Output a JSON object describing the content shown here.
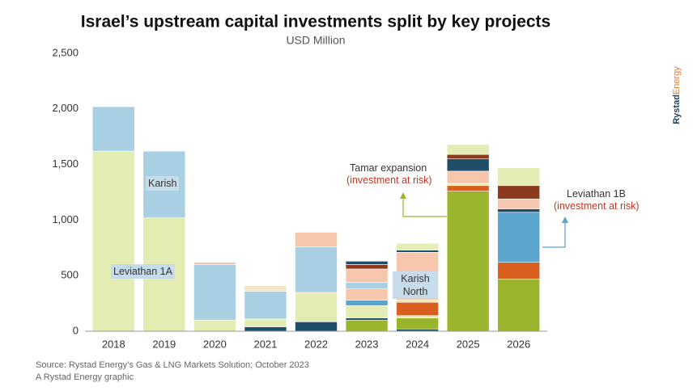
{
  "chart_data": {
    "type": "stacked-bar",
    "title": "Israel’s upstream capital investments split by key projects",
    "subtitle": "USD Million",
    "categories": [
      "2018",
      "2019",
      "2020",
      "2021",
      "2022",
      "2023",
      "2024",
      "2025",
      "2026"
    ],
    "stacks": [
      [
        {
          "color": "#e3ecb2",
          "value": 1620
        },
        {
          "color": "#a9cfe3",
          "value": 400
        }
      ],
      [
        {
          "color": "#e3ecb2",
          "value": 1020
        },
        {
          "color": "#a9cfe3",
          "value": 600
        }
      ],
      [
        {
          "color": "#e3ecb2",
          "value": 100
        },
        {
          "color": "#a9cfe3",
          "value": 500
        },
        {
          "color": "#f5c6ac",
          "value": 20
        }
      ],
      [
        {
          "color": "#1f4e6b",
          "value": 40
        },
        {
          "color": "#e3ecb2",
          "value": 70
        },
        {
          "color": "#a9cfe3",
          "value": 250
        },
        {
          "color": "#f1e6c8",
          "value": 50
        }
      ],
      [
        {
          "color": "#1f4e6b",
          "value": 85
        },
        {
          "color": "#e3ecb2",
          "value": 255
        },
        {
          "color": "#f5c6ac",
          "value": 10
        },
        {
          "color": "#a9cfe3",
          "value": 410
        },
        {
          "color": "#f5c6ac",
          "value": 130
        }
      ],
      [
        {
          "color": "#9ab52b",
          "value": 100
        },
        {
          "color": "#1f4e6b",
          "value": 20
        },
        {
          "color": "#e3ecb2",
          "value": 110
        },
        {
          "color": "#5aa5cc",
          "value": 50
        },
        {
          "color": "#f5c6ac",
          "value": 100
        },
        {
          "color": "#a9cfe3",
          "value": 60
        },
        {
          "color": "#f5c6ac",
          "value": 120
        },
        {
          "color": "#8b3a1e",
          "value": 40
        },
        {
          "color": "#1f4e6b",
          "value": 30
        }
      ],
      [
        {
          "color": "#1f4e6b",
          "value": 20
        },
        {
          "color": "#9ab52b",
          "value": 100
        },
        {
          "color": "#e3ecb2",
          "value": 20
        },
        {
          "color": "#d95f1e",
          "value": 120
        },
        {
          "color": "#e3ecb2",
          "value": 20
        },
        {
          "color": "#f5c6ac",
          "value": 430
        },
        {
          "color": "#1f4e6b",
          "value": 20
        },
        {
          "color": "#e3ecb2",
          "value": 60
        }
      ],
      [
        {
          "color": "#9ab52b",
          "value": 1260
        },
        {
          "color": "#d95f1e",
          "value": 50
        },
        {
          "color": "#e3ecb2",
          "value": 20
        },
        {
          "color": "#f5c6ac",
          "value": 110
        },
        {
          "color": "#1f4e6b",
          "value": 110
        },
        {
          "color": "#8b3a1e",
          "value": 40
        },
        {
          "color": "#e3ecb2",
          "value": 90
        }
      ],
      [
        {
          "color": "#9ab52b",
          "value": 470
        },
        {
          "color": "#d95f1e",
          "value": 150
        },
        {
          "color": "#5aa5cc",
          "value": 450
        },
        {
          "color": "#1f4e6b",
          "value": 30
        },
        {
          "color": "#f5c6ac",
          "value": 90
        },
        {
          "color": "#8b3a1e",
          "value": 120
        },
        {
          "color": "#e3ecb2",
          "value": 160
        }
      ]
    ],
    "ylim": [
      0,
      2500
    ],
    "yticks": [
      0,
      {
        "value": 500,
        "label": "500"
      },
      {
        "value": 1000,
        "label": "1,000"
      },
      {
        "value": 1500,
        "label": "1,500"
      },
      {
        "value": 2000,
        "label": "2,000"
      },
      {
        "value": 2500,
        "label": "2,500"
      }
    ],
    "annotations": [
      "Karish",
      "Leviathan 1A",
      "Karish North",
      "Tamar expansion",
      "(investment at risk)",
      "Leviathan 1B",
      "(investment at risk)"
    ],
    "logo": [
      "Rystad",
      "Energy"
    ],
    "source": [
      "Source: Rystad Energy’s Gas & LNG Markets Solution; October 2023",
      "A Rystad Energy graphic"
    ]
  }
}
